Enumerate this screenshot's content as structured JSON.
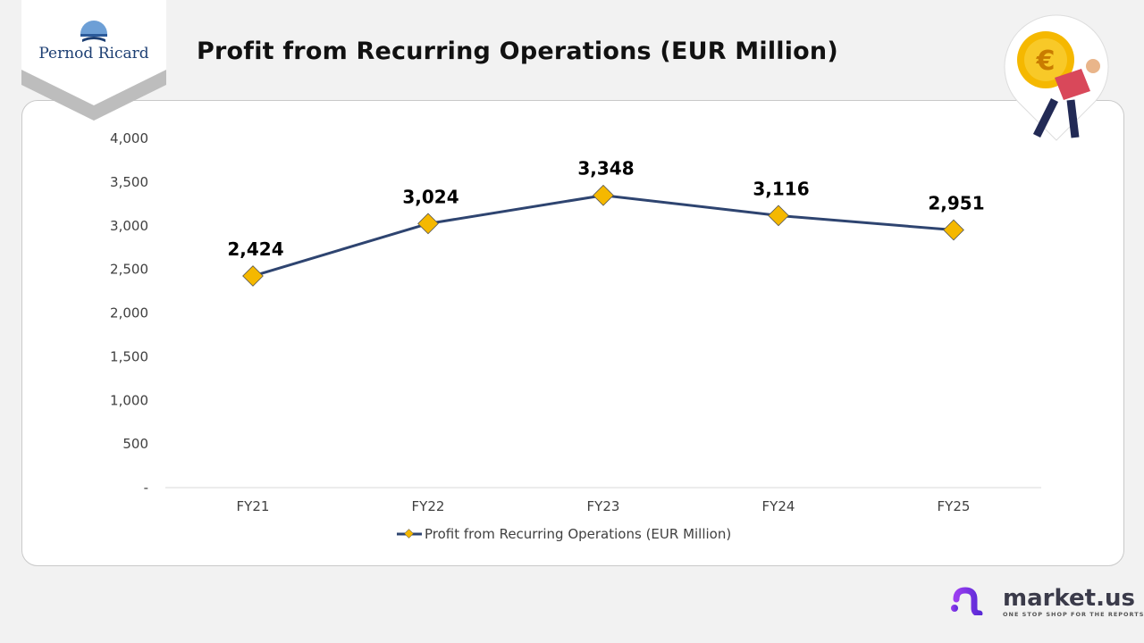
{
  "header": {
    "title": "Profit from Recurring Operations (EUR Million)",
    "company_logo": "Pernod Ricard",
    "mascot_icon": "euro-coin-person-icon"
  },
  "branding": {
    "name": "market.us",
    "tagline": "ONE STOP SHOP FOR THE REPORTS"
  },
  "colors": {
    "line": "#2e4470",
    "marker": "#f5b800",
    "accent": "#7b2ff2"
  },
  "chart_data": {
    "type": "line",
    "title": "",
    "categories": [
      "FY21",
      "FY22",
      "FY23",
      "FY24",
      "FY25"
    ],
    "series": [
      {
        "name": "Profit from Recurring Operations (EUR Million)",
        "values": [
          2424,
          3024,
          3348,
          3116,
          2951
        ]
      }
    ],
    "data_labels": [
      "2,424",
      "3,024",
      "3,348",
      "3,116",
      "2,951"
    ],
    "ylim": [
      0,
      4000
    ],
    "yticks": [
      0,
      500,
      1000,
      1500,
      2000,
      2500,
      3000,
      3500,
      4000
    ],
    "ytick_labels": [
      "-",
      "500",
      "1,000",
      "1,500",
      "2,000",
      "2,500",
      "3,000",
      "3,500",
      "4,000"
    ],
    "grid": false,
    "legend": "bottom"
  }
}
